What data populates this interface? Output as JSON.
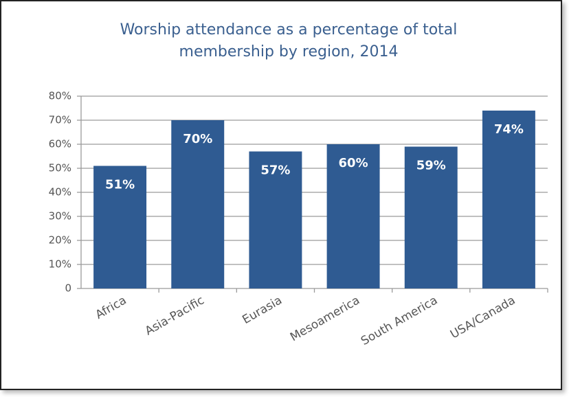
{
  "chart_data": {
    "type": "bar",
    "title": "Worship attendance as a percentage of total membership by region, 2014",
    "categories": [
      "Africa",
      "Asia-Pacific",
      "Eurasia",
      "Mesoamerica",
      "South America",
      "USA/Canada"
    ],
    "values": [
      51,
      70,
      57,
      60,
      59,
      74
    ],
    "value_labels": [
      "51%",
      "70%",
      "57%",
      "60%",
      "59%",
      "74%"
    ],
    "color": "#2f5b92",
    "ylim": [
      0,
      80
    ],
    "yticks": [
      0,
      {
        "value": 10,
        "label": "10%"
      },
      {
        "value": 20,
        "label": "20%"
      },
      {
        "value": 30,
        "label": "30%"
      },
      {
        "value": 40,
        "label": "40%"
      },
      {
        "value": 50,
        "label": "50%"
      },
      {
        "value": 60,
        "label": "60%"
      },
      {
        "value": 70,
        "label": "70%"
      },
      {
        "value": 80,
        "label": "80%"
      }
    ],
    "grid": true
  }
}
